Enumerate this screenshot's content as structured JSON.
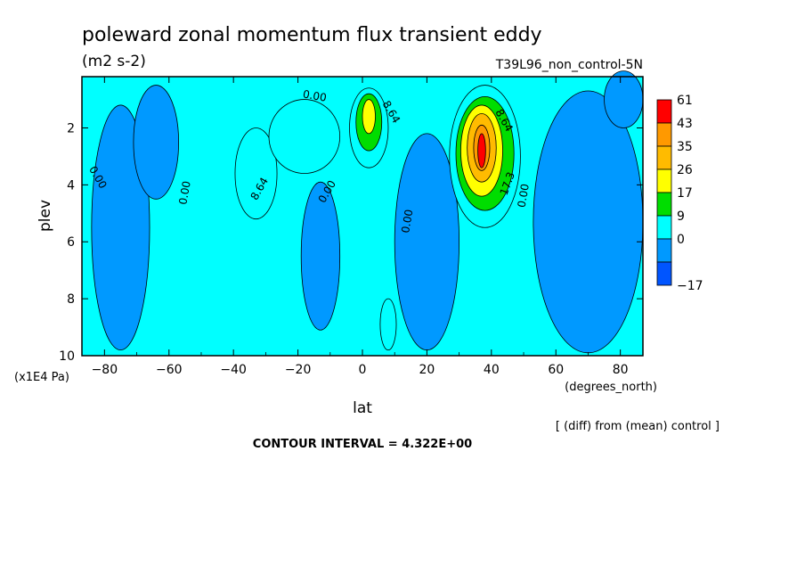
{
  "chart_data": {
    "type": "heatmap",
    "title": "poleward zonal momentum flux transient eddy",
    "units": "(m2 s-2)",
    "run_label": "T39L96_non_control-5N",
    "xlabel": "lat",
    "x_units": "(degrees_north)",
    "ylabel": "plev",
    "y_units": "(x1E4 Pa)",
    "x_ticks": [
      -80,
      -60,
      -40,
      -20,
      0,
      20,
      40,
      60,
      80
    ],
    "y_ticks": [
      2,
      4,
      6,
      8,
      10
    ],
    "xlim": [
      -87,
      87
    ],
    "ylim": [
      10,
      0.2
    ],
    "diff_note": "[ (diff) from (mean) control ]",
    "contour_interval_text": "CONTOUR INTERVAL = 4.322E+00",
    "colorbar": {
      "labels": [
        "61",
        "43",
        "35",
        "26",
        "17",
        "9",
        "0",
        "-17"
      ],
      "colors": [
        "#ff0000",
        "#ff9900",
        "#ffbb00",
        "#ffff00",
        "#00dd00",
        "#00ffff",
        "#0099ff",
        "#0055ff"
      ]
    },
    "contour_labels": [
      {
        "text": "0.00",
        "lat": -83,
        "plev": 3.8,
        "rot": 60
      },
      {
        "text": "0.00",
        "lat": -54,
        "plev": 4.3,
        "rot": -80
      },
      {
        "text": "8.64",
        "lat": -31,
        "plev": 4.2,
        "rot": -60
      },
      {
        "text": "0.00",
        "lat": -10,
        "plev": 4.3,
        "rot": -60
      },
      {
        "text": "0.00",
        "lat": -15,
        "plev": 1.0,
        "rot": 10
      },
      {
        "text": "8.64",
        "lat": 8,
        "plev": 1.5,
        "rot": 60
      },
      {
        "text": "0.00",
        "lat": 15,
        "plev": 5.3,
        "rot": -80
      },
      {
        "text": "8.64",
        "lat": 43,
        "plev": 1.8,
        "rot": 60
      },
      {
        "text": "17.3",
        "lat": 46,
        "plev": 4.0,
        "rot": -70
      },
      {
        "text": "0.00",
        "lat": 51,
        "plev": 4.4,
        "rot": -80
      }
    ],
    "blobs": [
      {
        "level": 5,
        "lat": 38,
        "plev": 3.0,
        "rlat": 11,
        "rplev": 2.5
      },
      {
        "level": 4,
        "lat": 38,
        "plev": 2.9,
        "rlat": 9,
        "rplev": 2.0
      },
      {
        "level": 3,
        "lat": 37,
        "plev": 2.8,
        "rlat": 6.5,
        "rplev": 1.6
      },
      {
        "level": 2,
        "lat": 37,
        "plev": 2.7,
        "rlat": 4.5,
        "rplev": 1.2
      },
      {
        "level": 1,
        "lat": 37,
        "plev": 2.7,
        "rlat": 2.5,
        "rplev": 0.8
      },
      {
        "level": 0,
        "lat": 37,
        "plev": 2.8,
        "rlat": 1.2,
        "rplev": 0.6
      },
      {
        "level": 5,
        "lat": -33,
        "plev": 3.6,
        "rlat": 6.5,
        "rplev": 1.6
      },
      {
        "level": 5,
        "lat": -18,
        "plev": 2.3,
        "rlat": 11,
        "rplev": 1.3
      },
      {
        "level": 5,
        "lat": 2,
        "plev": 2.0,
        "rlat": 6,
        "rplev": 1.4
      },
      {
        "level": 4,
        "lat": 2,
        "plev": 1.8,
        "rlat": 4,
        "rplev": 1.0
      },
      {
        "level": 3,
        "lat": 2,
        "plev": 1.6,
        "rlat": 2,
        "rplev": 0.6
      },
      {
        "level": 5,
        "lat": 8,
        "plev": 8.9,
        "rlat": 2.5,
        "rplev": 0.9
      }
    ],
    "negative_regions": [
      {
        "lat": -75,
        "plev": 5.5,
        "rlat": 9,
        "rplev": 4.3
      },
      {
        "lat": -64,
        "plev": 2.5,
        "rlat": 7,
        "rplev": 2.0
      },
      {
        "lat": -13,
        "plev": 6.5,
        "rlat": 6,
        "rplev": 2.6
      },
      {
        "lat": 20,
        "plev": 6.0,
        "rlat": 10,
        "rplev": 3.8
      },
      {
        "lat": 70,
        "plev": 5.3,
        "rlat": 17,
        "rplev": 4.6
      },
      {
        "lat": 81,
        "plev": 1.0,
        "rlat": 6,
        "rplev": 1.0
      }
    ]
  }
}
